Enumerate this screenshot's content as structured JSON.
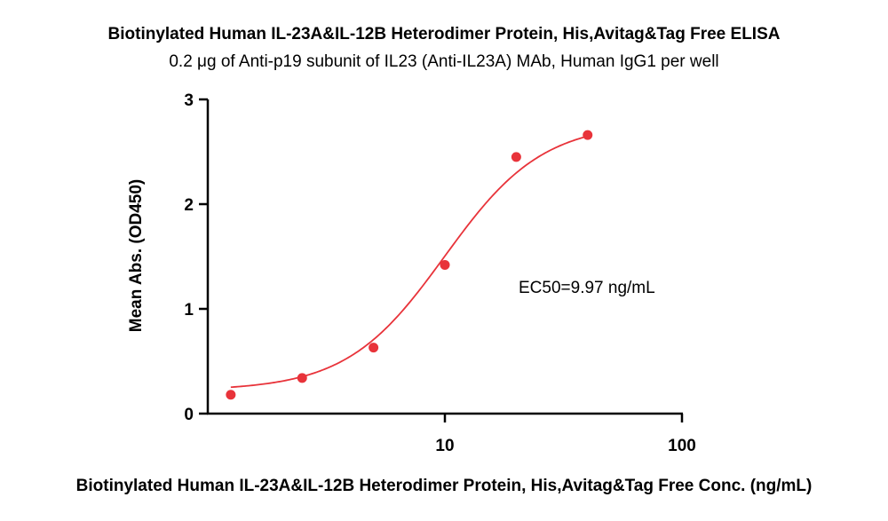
{
  "chart_data": {
    "type": "scatter",
    "title": "Biotinylated Human IL-23A&IL-12B Heterodimer Protein, His,Avitag&Tag Free ELISA",
    "subtitle": "0.2 μg of Anti-p19 subunit of IL23 (Anti-IL23A) MAb, Human IgG1 per well",
    "xlabel": "Biotinylated Human IL-23A&IL-12B Heterodimer Protein, His,Avitag&Tag Free Conc. (ng/mL)",
    "ylabel": "Mean Abs. (OD450)",
    "xscale": "log",
    "xlim": [
      1,
      100
    ],
    "ylim": [
      0,
      3
    ],
    "xticks": [
      10,
      100
    ],
    "xtick_labels": [
      "10",
      "100"
    ],
    "yticks": [
      0,
      1,
      2,
      3
    ],
    "ytick_labels": [
      "0",
      "1",
      "2",
      "3"
    ],
    "grid": false,
    "annotation": "EC50=9.97 ng/mL",
    "colors": {
      "points": "#e8333a",
      "curve": "#e8333a"
    },
    "points": {
      "x": [
        1.25,
        2.5,
        5,
        10,
        20,
        40
      ],
      "y": [
        0.18,
        0.34,
        0.63,
        1.42,
        2.45,
        2.66
      ]
    },
    "fit": {
      "model": "4PL",
      "bottom": 0.22,
      "top": 2.78,
      "ec50": 9.97,
      "hill": 2.1,
      "x_range": [
        1.25,
        40
      ]
    }
  }
}
